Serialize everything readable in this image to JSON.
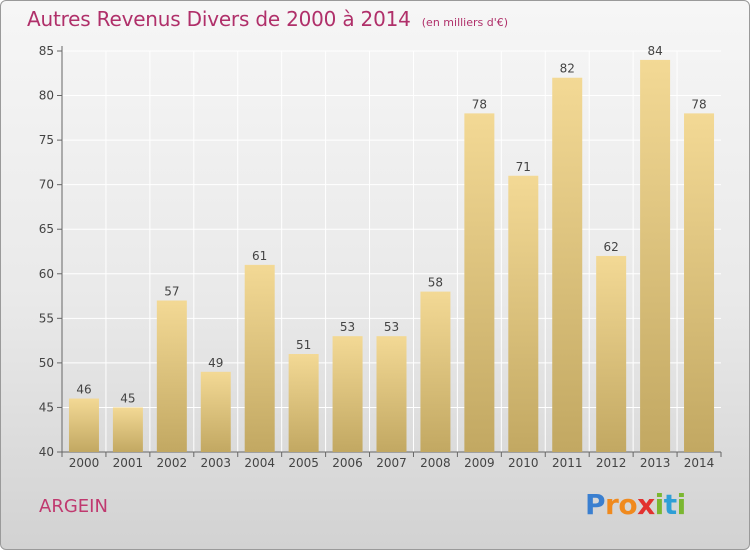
{
  "chart_data": {
    "type": "bar",
    "title": "Autres Revenus Divers de 2000 à 2014",
    "subtitle": "(en milliers d'€)",
    "categories": [
      "2000",
      "2001",
      "2002",
      "2003",
      "2004",
      "2005",
      "2006",
      "2007",
      "2008",
      "2009",
      "2010",
      "2011",
      "2012",
      "2013",
      "2014"
    ],
    "values": [
      46,
      45,
      57,
      49,
      61,
      51,
      53,
      53,
      58,
      78,
      71,
      82,
      62,
      84,
      78
    ],
    "ylim": [
      40,
      85
    ],
    "yticks": [
      40,
      45,
      50,
      55,
      60,
      65,
      70,
      75,
      80,
      85
    ],
    "grid": true,
    "xlabel": "",
    "ylabel": "",
    "colors": {
      "bar_top": "#f3d995",
      "bar_bottom": "#c2a862",
      "grid": "#ffffff",
      "title": "#b0306a"
    }
  },
  "commune": "ARGEIN",
  "logo": {
    "letters": [
      "P",
      "r",
      "o",
      "x",
      "i",
      "t",
      "i"
    ],
    "colors": [
      "#3a7fd0",
      "#f08a1e",
      "#f08a1e",
      "#e2312f",
      "#7bb731",
      "#2f9fd6",
      "#7bb731"
    ]
  }
}
